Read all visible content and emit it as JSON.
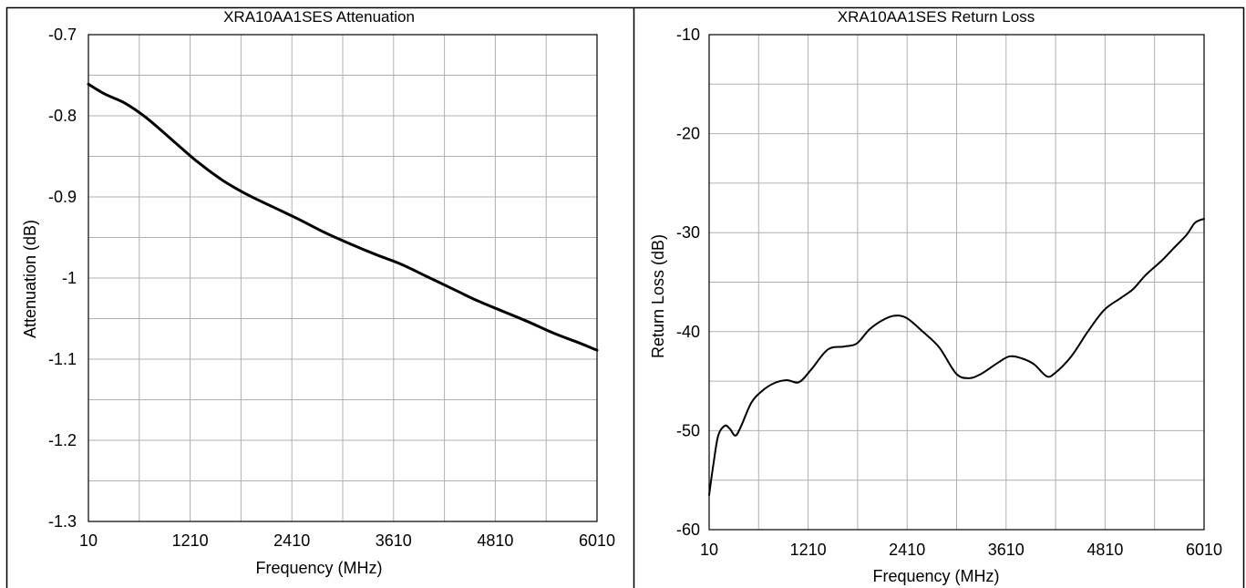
{
  "chart_data": [
    {
      "type": "line",
      "title": "XRA10AA1SES Attenuation",
      "xlabel": "Frequency (MHz)",
      "ylabel": "Attenuation (dB)",
      "xlim": [
        10,
        6010
      ],
      "ylim": [
        -1.3,
        -0.7
      ],
      "x_ticks": [
        "10",
        "1210",
        "2410",
        "3610",
        "4810",
        "6010"
      ],
      "y_ticks": [
        "-0.7",
        "-0.8",
        "-0.9",
        "-1",
        "-1.1",
        "-1.2",
        "-1.3"
      ],
      "grid": true,
      "series": [
        {
          "x": [
            10,
            200,
            450,
            700,
            1000,
            1300,
            1600,
            1900,
            2200,
            2500,
            2800,
            3100,
            3400,
            3700,
            4000,
            4300,
            4600,
            4900,
            5200,
            5500,
            5800,
            6010
          ],
          "y": [
            -0.761,
            -0.773,
            -0.785,
            -0.803,
            -0.83,
            -0.857,
            -0.88,
            -0.898,
            -0.913,
            -0.928,
            -0.944,
            -0.958,
            -0.971,
            -0.983,
            -0.998,
            -1.013,
            -1.028,
            -1.041,
            -1.054,
            -1.068,
            -1.08,
            -1.089
          ]
        }
      ]
    },
    {
      "type": "line",
      "title": "XRA10AA1SES Return Loss",
      "xlabel": "Frequency (MHz)",
      "ylabel": "Return Loss (dB)",
      "xlim": [
        10,
        6010
      ],
      "ylim": [
        -60,
        -10
      ],
      "x_ticks": [
        "10",
        "1210",
        "2410",
        "3610",
        "4810",
        "6010"
      ],
      "y_ticks": [
        "-10",
        "-20",
        "-30",
        "-40",
        "-50",
        "-60"
      ],
      "grid": true,
      "series": [
        {
          "x": [
            10,
            60,
            120,
            200,
            260,
            330,
            400,
            520,
            650,
            800,
            950,
            1100,
            1250,
            1450,
            1650,
            1800,
            1950,
            2100,
            2250,
            2400,
            2600,
            2800,
            3000,
            3150,
            3300,
            3500,
            3650,
            3800,
            3950,
            4100,
            4200,
            4400,
            4600,
            4800,
            5000,
            5150,
            5300,
            5500,
            5650,
            5800,
            5900,
            6010
          ],
          "y": [
            -56.5,
            -53.5,
            -50.5,
            -49.5,
            -49.8,
            -50.5,
            -49.5,
            -47.2,
            -46.0,
            -45.2,
            -44.9,
            -45.1,
            -43.8,
            -41.8,
            -41.5,
            -41.2,
            -39.8,
            -38.9,
            -38.4,
            -38.6,
            -40.0,
            -41.6,
            -44.2,
            -44.7,
            -44.3,
            -43.2,
            -42.5,
            -42.7,
            -43.3,
            -44.5,
            -44.2,
            -42.5,
            -40.0,
            -37.8,
            -36.6,
            -35.7,
            -34.3,
            -32.8,
            -31.5,
            -30.2,
            -29.0,
            -28.6
          ]
        }
      ]
    }
  ]
}
